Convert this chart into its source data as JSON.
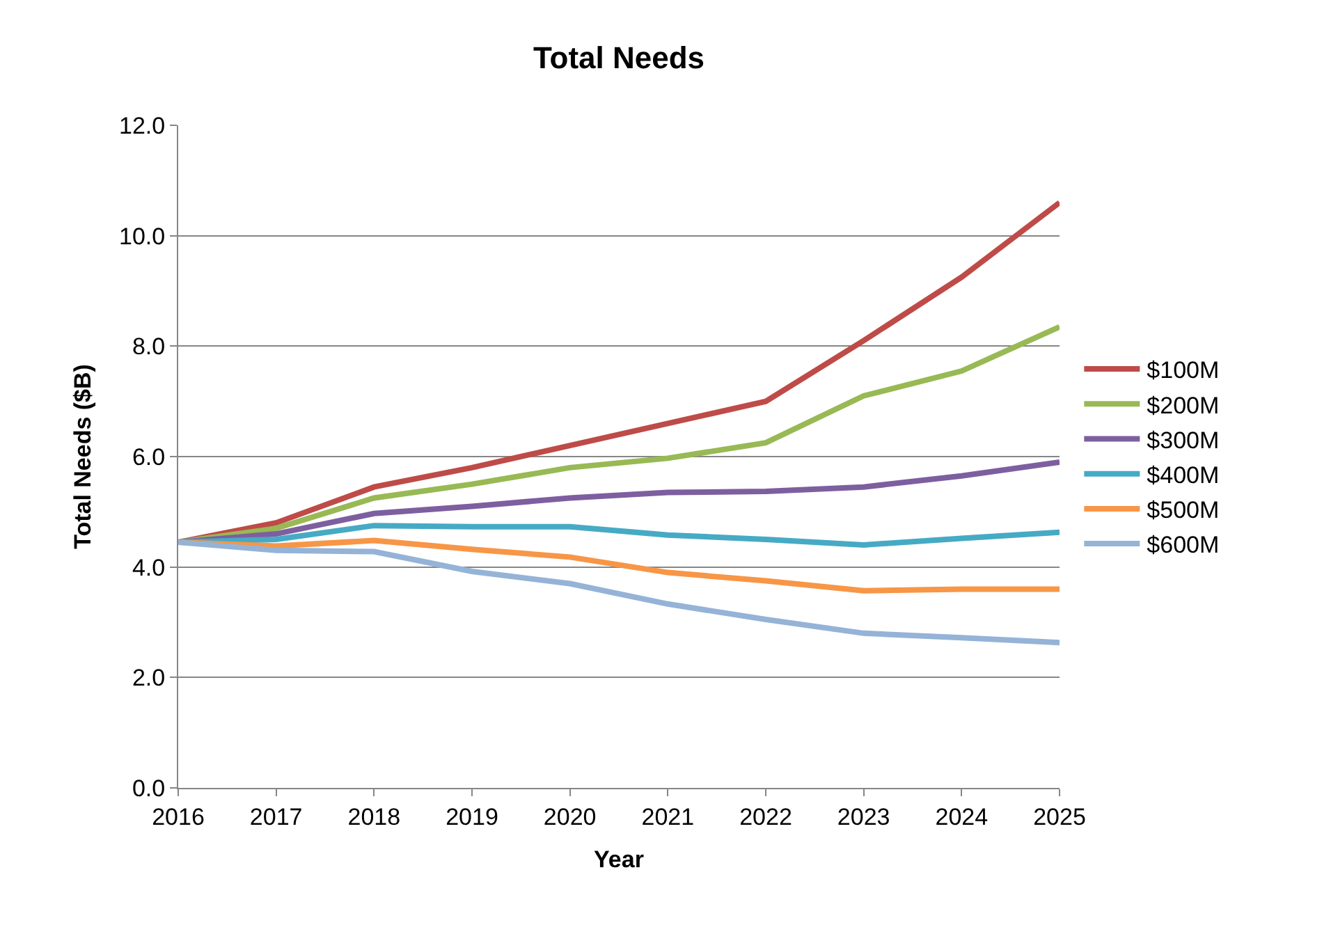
{
  "chart_data": {
    "type": "line",
    "title": "Total Needs",
    "xlabel": "Year",
    "ylabel": "Total Needs ($B)",
    "x": [
      2016,
      2017,
      2018,
      2019,
      2020,
      2021,
      2022,
      2023,
      2024,
      2025
    ],
    "xlim": [
      2016,
      2025
    ],
    "xticks": [
      2016,
      2017,
      2018,
      2019,
      2020,
      2021,
      2022,
      2023,
      2024,
      2025
    ],
    "ylim": [
      0,
      12
    ],
    "yticks": [
      {
        "value": 0,
        "label": "0.0"
      },
      {
        "value": 2,
        "label": "2.0"
      },
      {
        "value": 4,
        "label": "4.0"
      },
      {
        "value": 6,
        "label": "6.0"
      },
      {
        "value": 8,
        "label": "8.0"
      },
      {
        "value": 10,
        "label": "10.0"
      },
      {
        "value": 12,
        "label": "12.0"
      }
    ],
    "grid": "y",
    "legend": "right",
    "marker": "none",
    "line_style": "solid",
    "series": [
      {
        "name": "$100M",
        "color": "#be4b48",
        "values": [
          4.45,
          4.8,
          5.45,
          5.8,
          6.2,
          6.6,
          7.0,
          8.1,
          9.25,
          10.6
        ]
      },
      {
        "name": "$200M",
        "color": "#98b954",
        "values": [
          4.45,
          4.7,
          5.25,
          5.5,
          5.8,
          5.97,
          6.25,
          7.1,
          7.55,
          8.35
        ]
      },
      {
        "name": "$300M",
        "color": "#7d5fa0",
        "values": [
          4.45,
          4.6,
          4.97,
          5.1,
          5.25,
          5.35,
          5.37,
          5.45,
          5.65,
          5.9
        ]
      },
      {
        "name": "$400M",
        "color": "#46aac5",
        "values": [
          4.45,
          4.5,
          4.75,
          4.73,
          4.73,
          4.58,
          4.5,
          4.4,
          4.52,
          4.63
        ]
      },
      {
        "name": "$500M",
        "color": "#f79646",
        "values": [
          4.45,
          4.38,
          4.48,
          4.32,
          4.18,
          3.9,
          3.75,
          3.57,
          3.6,
          3.6
        ]
      },
      {
        "name": "$600M",
        "color": "#95b3d7",
        "values": [
          4.45,
          4.3,
          4.28,
          3.92,
          3.7,
          3.33,
          3.05,
          2.8,
          2.72,
          2.63
        ]
      }
    ]
  }
}
